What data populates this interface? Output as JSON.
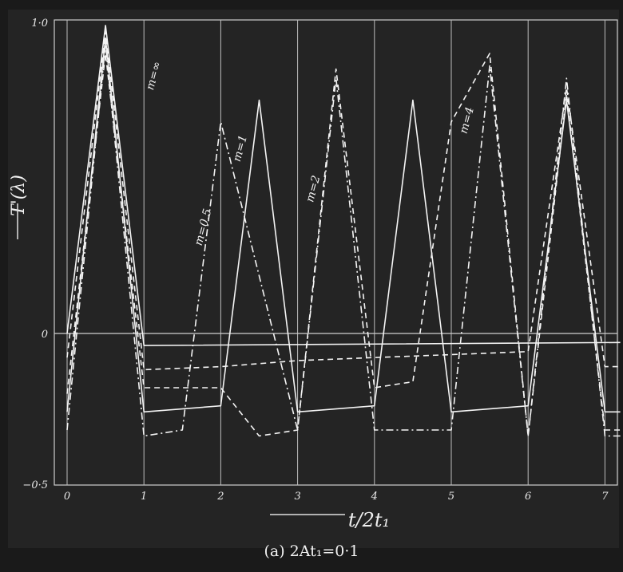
{
  "chart_data": {
    "type": "line",
    "title": "",
    "xlabel": "t/2t₁",
    "ylabel": "T'(λ)",
    "caption": "(a) 2At₁=0·1",
    "xlim": [
      0,
      7.2
    ],
    "ylim": [
      -0.5,
      1.0
    ],
    "x_ticks": [
      "0",
      "1",
      "2",
      "3",
      "4",
      "5",
      "6",
      "7"
    ],
    "y_ticks": [
      {
        "value": 1.0,
        "label": "1·0"
      },
      {
        "value": 0.0,
        "label": "0"
      },
      {
        "value": -0.5,
        "label": "−0·5"
      }
    ],
    "grid": true,
    "series": [
      {
        "name": "m=∞",
        "style": "solid",
        "x": [
          0,
          0.5,
          1,
          7.2
        ],
        "y": [
          0,
          0.99,
          -0.04,
          -0.03
        ]
      },
      {
        "name": "m=0.5",
        "style": "dashed",
        "x": [
          0,
          0.5,
          1,
          2,
          3,
          4,
          5,
          6,
          6.5,
          7,
          7.2
        ],
        "y": [
          -0.08,
          0.97,
          -0.12,
          -0.11,
          -0.09,
          -0.08,
          -0.07,
          -0.06,
          0.79,
          -0.11,
          -0.11
        ]
      },
      {
        "name": "m=1",
        "style": "solid",
        "x": [
          0,
          0.5,
          1,
          2,
          2.5,
          3,
          4,
          4.5,
          5,
          6,
          6.5,
          7,
          7.2
        ],
        "y": [
          -0.26,
          0.95,
          -0.26,
          -0.24,
          0.75,
          -0.26,
          -0.24,
          0.75,
          -0.26,
          -0.24,
          0.75,
          -0.26,
          -0.26
        ]
      },
      {
        "name": "m=2",
        "style": "dashdot",
        "x": [
          0,
          0.5,
          1,
          1.5,
          2,
          3,
          3.5,
          4,
          5,
          5.5,
          6,
          6.5,
          7,
          7.2
        ],
        "y": [
          -0.32,
          0.93,
          -0.34,
          -0.32,
          0.68,
          -0.32,
          0.82,
          -0.32,
          -0.32,
          0.86,
          -0.34,
          0.82,
          -0.34,
          -0.34
        ]
      },
      {
        "name": "m=4",
        "style": "dashed",
        "x": [
          0,
          0.5,
          1,
          2,
          2.5,
          3,
          3.5,
          4,
          4.5,
          5,
          5.5,
          6,
          6.5,
          7,
          7.2
        ],
        "y": [
          -0.2,
          0.9,
          -0.18,
          -0.18,
          -0.34,
          -0.32,
          0.85,
          -0.18,
          -0.16,
          0.68,
          0.9,
          -0.34,
          0.77,
          -0.32,
          -0.32
        ]
      }
    ],
    "annotations": [
      "m=∞",
      "m=0.5",
      "m=1",
      "m=2",
      "m=4"
    ]
  }
}
